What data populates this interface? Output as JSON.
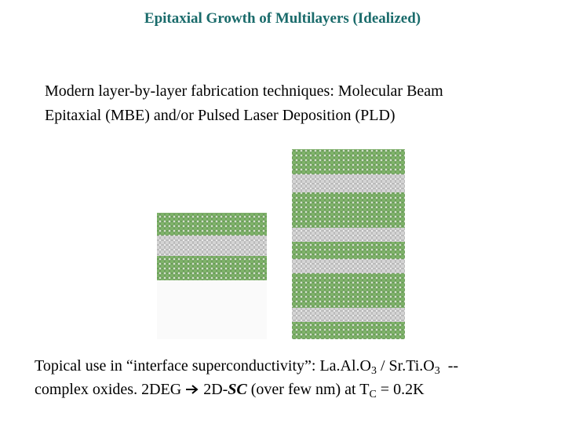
{
  "title": "Epitaxial Growth of Multilayers (Idealized)",
  "intro": {
    "lines": [
      "Modern layer-by-layer fabrication techniques: Molecular Beam",
      "Epitaxial (MBE) and/or Pulsed Laser Deposition (PLD)"
    ]
  },
  "note": {
    "line1": {
      "text": "Topical use in “interface superconductivity”: La.Al.O",
      "sub1": "3",
      "mid": " / Sr.Ti.O",
      "sub2": "3",
      "end": "  --"
    },
    "line2": {
      "start": "complex oxides. 2DEG ",
      "mid": " 2D-",
      "emph": "SC",
      "rest": " (over few nm) at T",
      "sub": "C",
      "end": " = 0.2K"
    }
  }
}
